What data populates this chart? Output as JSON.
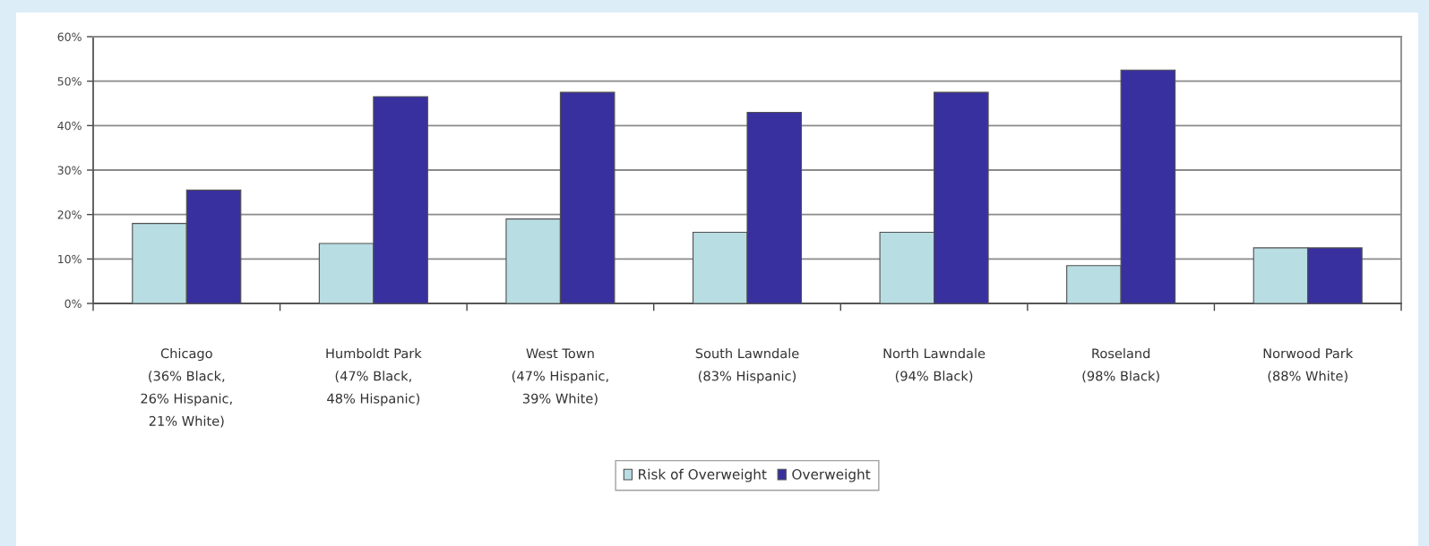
{
  "chart_data": {
    "type": "bar",
    "categories": [
      "Chicago\n(36% Black,\n26% Hispanic,\n21% White)",
      "Humboldt Park\n(47% Black,\n48% Hispanic)",
      "West Town\n(47% Hispanic,\n39% White)",
      "South Lawndale\n(83% Hispanic)",
      "North Lawndale\n(94% Black)",
      "Roseland\n(98% Black)",
      "Norwood Park\n(88% White)"
    ],
    "series": [
      {
        "name": "Risk of Overweight",
        "color": "#b8dde2",
        "values": [
          18,
          13.5,
          19,
          16,
          16,
          8.5,
          12.5
        ]
      },
      {
        "name": "Overweight",
        "color": "#38309f",
        "values": [
          25.5,
          46.5,
          47.5,
          43,
          47.5,
          52.5,
          12.5
        ]
      }
    ],
    "ylim": [
      0,
      60
    ],
    "yticks": [
      {
        "value": 0,
        "label": "0%"
      },
      {
        "value": 10,
        "label": "10%"
      },
      {
        "value": 20,
        "label": "20%"
      },
      {
        "value": 30,
        "label": "30%"
      },
      {
        "value": 40,
        "label": "40%"
      },
      {
        "value": 50,
        "label": "50%"
      },
      {
        "value": 60,
        "label": "60%"
      }
    ],
    "grid": "y",
    "legend": "bottom"
  }
}
